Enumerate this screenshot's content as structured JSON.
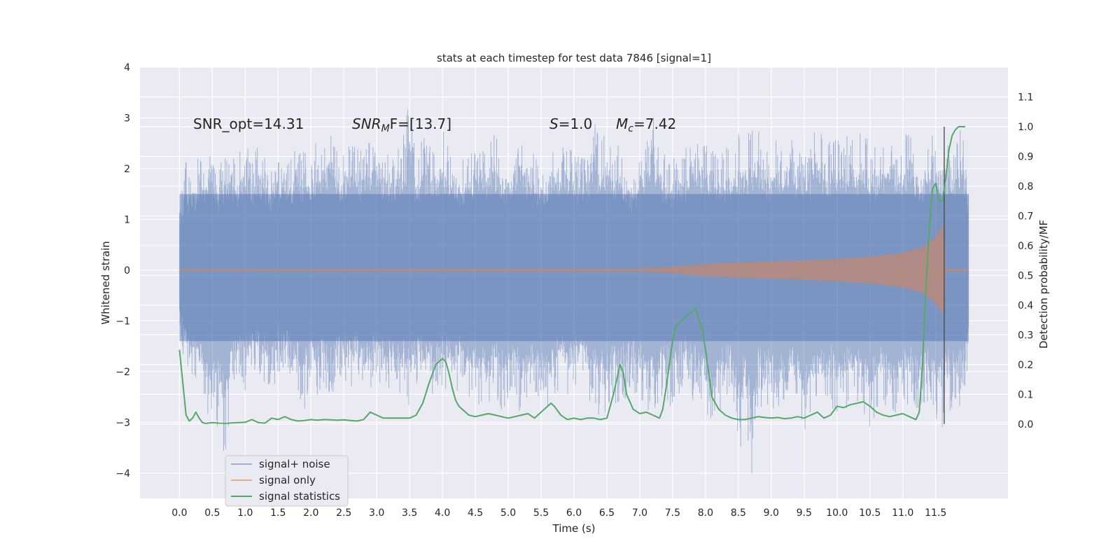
{
  "chart_data": {
    "type": "line",
    "title": "stats at each timestep for test data 7846 [signal=1]",
    "xlabel": "Time (s)",
    "ylabel": "Whitened strain",
    "y2label": "Detection probability/MF",
    "xlim": [
      -0.6,
      12.6
    ],
    "ylim": [
      -4.5,
      4.0
    ],
    "y2lim": [
      -0.25,
      1.2
    ],
    "xticks": [
      "0.0",
      "0.5",
      "1.0",
      "1.5",
      "2.0",
      "2.5",
      "3.0",
      "3.5",
      "4.0",
      "4.5",
      "5.0",
      "5.5",
      "6.0",
      "6.5",
      "7.0",
      "7.5",
      "8.0",
      "8.5",
      "9.0",
      "9.5",
      "10.0",
      "10.5",
      "11.0",
      "11.5"
    ],
    "yticks": [
      "4",
      "3",
      "2",
      "1",
      "0",
      "−1",
      "−2",
      "−3",
      "−4"
    ],
    "y2ticks": [
      "1.1",
      "1.0",
      "0.9",
      "0.8",
      "0.7",
      "0.6",
      "0.5",
      "0.4",
      "0.3",
      "0.2",
      "0.1",
      "0.0"
    ],
    "grid": true,
    "legend_position": "lower-left",
    "annotations": {
      "snr_opt": "SNR_opt=14.31",
      "snr_mf_base": "SNR",
      "snr_mf_sub": "M",
      "snr_mf_rest": "F=[13.7]",
      "s_label": "S",
      "s_value": "=1.0",
      "mc_base": "M",
      "mc_sub": "c",
      "mc_value": "=7.42"
    },
    "marker_time": 11.63,
    "series": [
      {
        "name": "signal+ noise",
        "color": "#4c72b0",
        "description_values": "noise band sampled as envelope",
        "t_start": 0.0,
        "t_end": 12.0,
        "envelope_upper": [
          1.6,
          2.2,
          2.0,
          2.3,
          2.5,
          2.9,
          2.0,
          2.4,
          2.2,
          2.3,
          2.6,
          2.1,
          2.5,
          2.3,
          2.0,
          2.4,
          2.3,
          2.2,
          2.6,
          2.4,
          2.2,
          2.8,
          2.7,
          3.0,
          2.3,
          2.5,
          2.6,
          2.4,
          2.5,
          2.7,
          2.9,
          2.3,
          2.4,
          2.5,
          2.6,
          3.5,
          2.2,
          2.7,
          2.6,
          2.5,
          2.8,
          2.4,
          2.3,
          2.2,
          2.4,
          2.6,
          2.7,
          2.5,
          2.8,
          2.4,
          2.3,
          2.6,
          2.9,
          2.5,
          2.3,
          2.2,
          2.4,
          2.6,
          2.6,
          2.5,
          2.4,
          2.2,
          2.3,
          3.3,
          2.5,
          2.8,
          2.6,
          2.4,
          2.2,
          2.0,
          2.5,
          2.7,
          3.1,
          2.4,
          2.3,
          2.2,
          2.5,
          2.4,
          3.0,
          2.7,
          2.5,
          2.6,
          2.3,
          2.4,
          2.5,
          2.7,
          2.6,
          2.8,
          2.9,
          2.5,
          2.5,
          2.6,
          2.7,
          2.8,
          2.4,
          2.6,
          2.5,
          3.1,
          2.5,
          2.6,
          2.7,
          2.5,
          2.8,
          2.6,
          2.9,
          2.4,
          2.5,
          2.6,
          2.9,
          2.7,
          2.6,
          2.8,
          2.5,
          2.4,
          2.7,
          2.6,
          2.4,
          2.5,
          2.6,
          3.1,
          1.7
        ],
        "envelope_lower": [
          -1.3,
          -2.0,
          -2.2,
          -2.4,
          -3.0,
          -2.7,
          -3.2,
          -3.8,
          -2.3,
          -2.1,
          -2.4,
          -2.2,
          -2.0,
          -2.3,
          -2.5,
          -2.1,
          -2.0,
          -2.2,
          -2.4,
          -2.8,
          -2.3,
          -2.5,
          -2.2,
          -2.6,
          -2.4,
          -2.2,
          -2.5,
          -2.3,
          -2.6,
          -2.4,
          -2.2,
          -2.5,
          -2.4,
          -2.6,
          -2.4,
          -2.7,
          -2.3,
          -2.4,
          -2.5,
          -2.5,
          -2.3,
          -2.4,
          -2.5,
          -2.2,
          -2.6,
          -2.6,
          -2.7,
          -2.9,
          -2.5,
          -2.8,
          -2.6,
          -2.4,
          -3.0,
          -2.7,
          -2.6,
          -2.4,
          -2.8,
          -2.5,
          -2.3,
          -2.6,
          -2.4,
          -2.3,
          -2.5,
          -2.7,
          -2.9,
          -2.8,
          -2.6,
          -2.7,
          -2.5,
          -2.4,
          -2.6,
          -2.8,
          -2.9,
          -2.7,
          -2.6,
          -2.8,
          -2.5,
          -2.4,
          -2.6,
          -2.7,
          -2.9,
          -3.3,
          -2.8,
          -2.7,
          -2.6,
          -3.9,
          -2.8,
          -4.1,
          -2.6,
          -2.9,
          -2.7,
          -2.8,
          -3.0,
          -2.6,
          -2.7,
          -3.5,
          -2.8,
          -2.7,
          -2.9,
          -2.6,
          -3.1,
          -2.8,
          -2.7,
          -2.6,
          -2.9,
          -3.2,
          -2.8,
          -2.7,
          -2.9,
          -3.0,
          -2.6,
          -2.7,
          -2.8,
          -2.6,
          -2.9,
          -3.0,
          -3.1,
          -2.8,
          -2.9,
          -2.6,
          -1.9
        ]
      },
      {
        "name": "signal only",
        "color": "#dd8452",
        "envelope_t": [
          0.0,
          7.0,
          7.5,
          8.0,
          8.5,
          9.0,
          9.5,
          10.0,
          10.5,
          11.0,
          11.3,
          11.5,
          11.6,
          11.63,
          11.65,
          12.0
        ],
        "envelope_amp": [
          0.02,
          0.03,
          0.06,
          0.12,
          0.15,
          0.17,
          0.19,
          0.22,
          0.26,
          0.34,
          0.45,
          0.65,
          0.85,
          0.95,
          0.03,
          0.02
        ]
      },
      {
        "name": "signal statistics",
        "color": "#55a868",
        "x": [
          0.0,
          0.05,
          0.1,
          0.15,
          0.2,
          0.25,
          0.3,
          0.35,
          0.4,
          0.5,
          0.6,
          0.7,
          0.8,
          0.9,
          1.0,
          1.1,
          1.2,
          1.3,
          1.4,
          1.5,
          1.6,
          1.7,
          1.8,
          1.9,
          2.0,
          2.1,
          2.2,
          2.3,
          2.4,
          2.5,
          2.6,
          2.7,
          2.8,
          2.9,
          3.0,
          3.1,
          3.2,
          3.3,
          3.4,
          3.5,
          3.6,
          3.7,
          3.8,
          3.9,
          4.0,
          4.05,
          4.1,
          4.15,
          4.2,
          4.25,
          4.3,
          4.35,
          4.4,
          4.5,
          4.6,
          4.7,
          4.8,
          4.9,
          5.0,
          5.1,
          5.2,
          5.3,
          5.4,
          5.5,
          5.6,
          5.65,
          5.7,
          5.8,
          5.9,
          6.0,
          6.1,
          6.2,
          6.3,
          6.4,
          6.5,
          6.6,
          6.7,
          6.75,
          6.8,
          6.9,
          7.0,
          7.1,
          7.2,
          7.3,
          7.35,
          7.4,
          7.45,
          7.5,
          7.55,
          7.6,
          7.7,
          7.8,
          7.85,
          7.9,
          7.95,
          8.0,
          8.05,
          8.1,
          8.2,
          8.3,
          8.4,
          8.5,
          8.6,
          8.7,
          8.8,
          8.9,
          9.0,
          9.1,
          9.2,
          9.3,
          9.4,
          9.5,
          9.6,
          9.7,
          9.8,
          9.9,
          10.0,
          10.1,
          10.2,
          10.3,
          10.4,
          10.5,
          10.6,
          10.7,
          10.8,
          10.9,
          11.0,
          11.1,
          11.2,
          11.25,
          11.3,
          11.35,
          11.4,
          11.45,
          11.5,
          11.55,
          11.6,
          11.65,
          11.7,
          11.75,
          11.8,
          11.85,
          11.9,
          11.95
        ],
        "values": [
          0.25,
          0.14,
          0.03,
          0.01,
          0.02,
          0.04,
          0.02,
          0.005,
          0.002,
          0.005,
          0.003,
          0.002,
          0.004,
          0.005,
          0.006,
          0.015,
          0.005,
          0.003,
          0.02,
          0.015,
          0.025,
          0.015,
          0.01,
          0.012,
          0.015,
          0.013,
          0.015,
          0.014,
          0.013,
          0.014,
          0.012,
          0.01,
          0.015,
          0.04,
          0.03,
          0.02,
          0.02,
          0.02,
          0.02,
          0.02,
          0.03,
          0.07,
          0.14,
          0.2,
          0.22,
          0.21,
          0.17,
          0.12,
          0.08,
          0.06,
          0.05,
          0.04,
          0.03,
          0.025,
          0.03,
          0.035,
          0.03,
          0.025,
          0.02,
          0.025,
          0.03,
          0.035,
          0.02,
          0.04,
          0.06,
          0.07,
          0.06,
          0.03,
          0.015,
          0.02,
          0.015,
          0.02,
          0.02,
          0.015,
          0.02,
          0.1,
          0.2,
          0.17,
          0.1,
          0.05,
          0.035,
          0.04,
          0.03,
          0.02,
          0.05,
          0.12,
          0.2,
          0.28,
          0.33,
          0.34,
          0.36,
          0.38,
          0.39,
          0.35,
          0.32,
          0.25,
          0.17,
          0.09,
          0.05,
          0.03,
          0.02,
          0.015,
          0.015,
          0.02,
          0.025,
          0.022,
          0.02,
          0.022,
          0.018,
          0.02,
          0.025,
          0.02,
          0.03,
          0.04,
          0.02,
          0.03,
          0.06,
          0.055,
          0.065,
          0.07,
          0.075,
          0.06,
          0.04,
          0.03,
          0.025,
          0.03,
          0.035,
          0.025,
          0.015,
          0.04,
          0.2,
          0.45,
          0.65,
          0.79,
          0.81,
          0.75,
          0.75,
          0.82,
          0.92,
          0.97,
          0.99,
          1.0,
          1.0,
          1.0
        ]
      }
    ]
  }
}
